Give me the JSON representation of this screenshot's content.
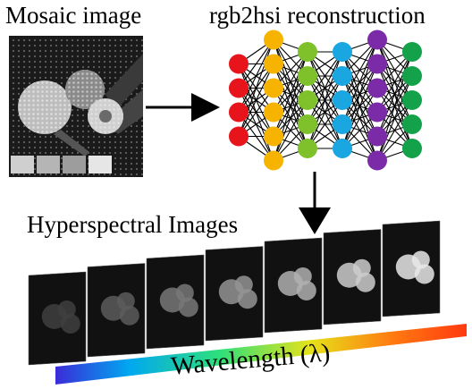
{
  "labels": {
    "mosaic": "Mosaic image",
    "reconstruction": "rgb2hsi reconstruction",
    "hyperspectral": "Hyperspectral Images",
    "wavelength": "Wavelength (λ)"
  },
  "network": {
    "layers": [
      {
        "color": "#e8141b",
        "nodes": 4
      },
      {
        "color": "#f6b400",
        "nodes": 6
      },
      {
        "color": "#7ec12b",
        "nodes": 5
      },
      {
        "color": "#1aa6e0",
        "nodes": 5
      },
      {
        "color": "#7b2aa8",
        "nodes": 6
      },
      {
        "color": "#13a24a",
        "nodes": 5
      }
    ]
  },
  "spectrum_colors": [
    "#3b2bd8",
    "#00a8f0",
    "#2ee07a",
    "#e6e21a",
    "#ff7a10",
    "#ff3a10"
  ],
  "hsi_stack_count": 7
}
